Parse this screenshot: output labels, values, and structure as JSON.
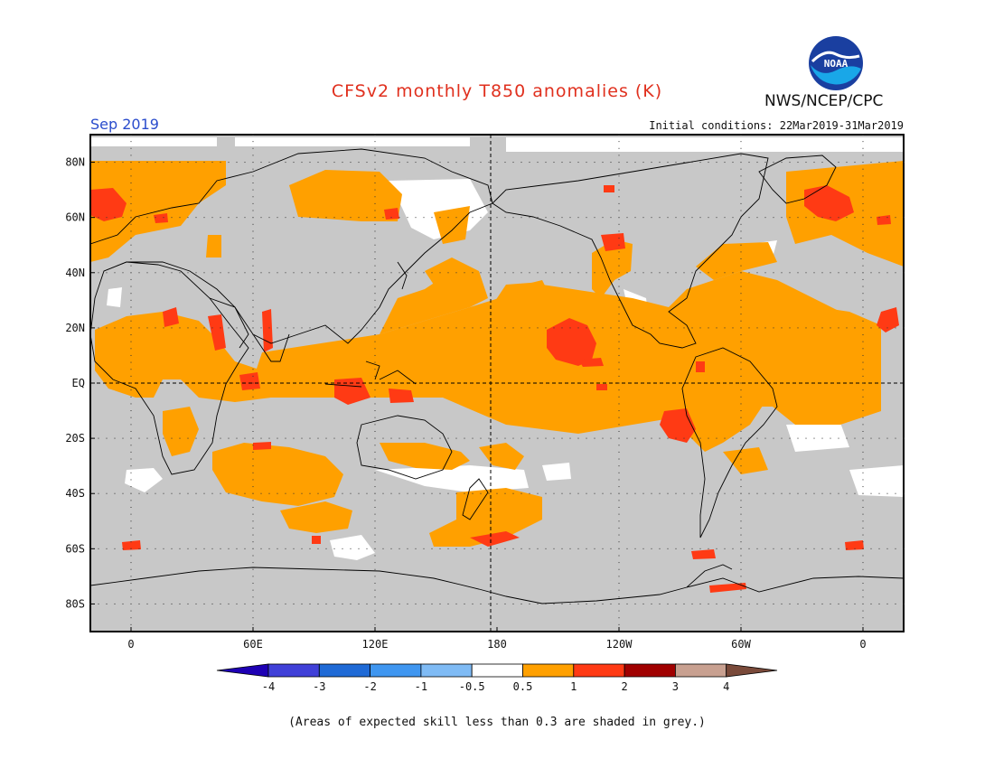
{
  "header": {
    "title": "CFSv2 monthly T850 anomalies (K)",
    "agency": "NWS/NCEP/CPC",
    "logo_text": "NOAA",
    "month": "Sep 2019",
    "initial_conditions": "Initial conditions: 22Mar2019-31Mar2019"
  },
  "map": {
    "projection": "equirectangular",
    "lon_range": [
      -20,
      380
    ],
    "lat_range": [
      -90,
      90
    ],
    "lat_ticks": [
      "80N",
      "60N",
      "40N",
      "20N",
      "EQ",
      "20S",
      "40S",
      "60S",
      "80S"
    ],
    "lon_ticks": [
      "0",
      "60E",
      "120E",
      "180",
      "120W",
      "60W",
      "0"
    ],
    "colors": {
      "grey": "#c8c8c8",
      "white": "#ffffff",
      "orange": "#ffa000",
      "red": "#ff3a14",
      "darkred": "#a00000"
    }
  },
  "legend": {
    "labels": [
      "-4",
      "-3",
      "-2",
      "-1",
      "-0.5",
      "0.5",
      "1",
      "2",
      "3",
      "4"
    ],
    "colors": [
      "#1e00b4",
      "#4040d8",
      "#1f6ad6",
      "#3f96f0",
      "#7fbbf5",
      "#ffffff",
      "#ffa000",
      "#ff3a14",
      "#a00000",
      "#c8a090",
      "#7a4a3a"
    ]
  },
  "note": "(Areas of expected skill less than 0.3 are shaded in grey.)"
}
